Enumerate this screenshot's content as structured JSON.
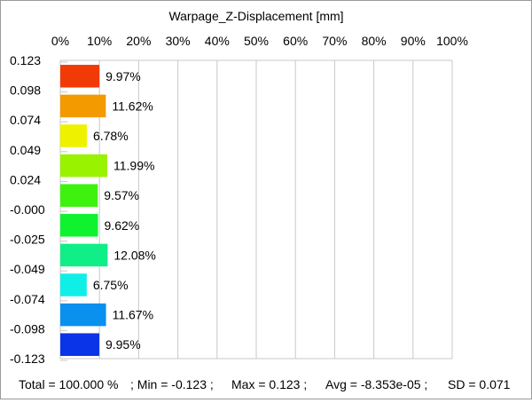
{
  "chart_data": {
    "type": "bar",
    "orientation": "horizontal",
    "title": "Warpage_Z-Displacement [mm]",
    "x_ticks": [
      "0%",
      "10%",
      "20%",
      "30%",
      "40%",
      "50%",
      "60%",
      "70%",
      "80%",
      "90%",
      "100%"
    ],
    "xlim": [
      0,
      100
    ],
    "y_ticks": [
      "0.123",
      "0.098",
      "0.074",
      "0.049",
      "0.024",
      "-0.000",
      "-0.025",
      "-0.049",
      "-0.074",
      "-0.098",
      "-0.123"
    ],
    "grid": true,
    "bars": [
      {
        "value": 9.97,
        "label": "9.97%",
        "color": "#f23a06"
      },
      {
        "value": 11.62,
        "label": "11.62%",
        "color": "#f29a00"
      },
      {
        "value": 6.78,
        "label": "6.78%",
        "color": "#eef200"
      },
      {
        "value": 11.99,
        "label": "11.99%",
        "color": "#98f200"
      },
      {
        "value": 9.57,
        "label": "9.57%",
        "color": "#3ef210"
      },
      {
        "value": 9.62,
        "label": "9.62%",
        "color": "#0ef230"
      },
      {
        "value": 12.08,
        "label": "12.08%",
        "color": "#10ee88"
      },
      {
        "value": 6.75,
        "label": "6.75%",
        "color": "#10eee8"
      },
      {
        "value": 11.67,
        "label": "11.67%",
        "color": "#0a90ee"
      },
      {
        "value": 9.95,
        "label": "9.95%",
        "color": "#0a34e8"
      }
    ]
  },
  "footer": {
    "total": "Total = 100.000 %",
    "min": "; Min = -0.123 ;",
    "max": "Max = 0.123 ;",
    "avg": "Avg = -8.353e-05 ;",
    "sd": "SD = 0.071"
  }
}
